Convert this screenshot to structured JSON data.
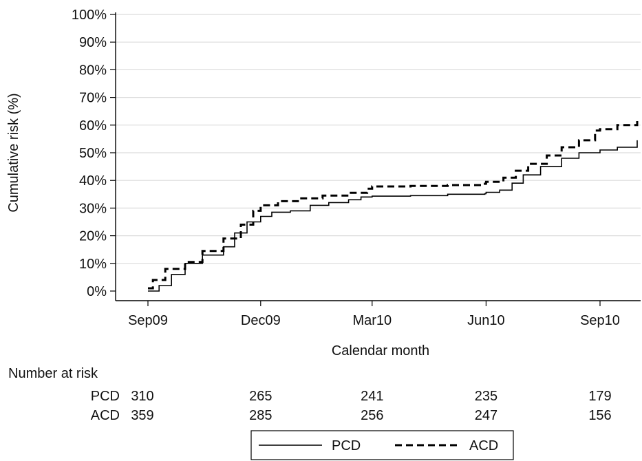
{
  "chart_data": {
    "type": "line",
    "xlabel": "Calendar month",
    "ylabel": "Cumulative risk (%)",
    "x_ticks": [
      "Sep09",
      "Dec09",
      "Mar10",
      "Jun10",
      "Sep10"
    ],
    "ylim": [
      0,
      100
    ],
    "y_ticks": [
      "0%",
      "10%",
      "20%",
      "30%",
      "40%",
      "50%",
      "60%",
      "70%",
      "80%",
      "90%",
      "100%"
    ],
    "grid": true,
    "legend_position": "bottom",
    "series": [
      {
        "name": "PCD",
        "style": "solid",
        "color": "#000000",
        "points": [
          [
            "Sep09",
            0
          ],
          [
            "2009-09-10",
            2
          ],
          [
            "2009-09-20",
            6
          ],
          [
            "2009-10-01",
            10
          ],
          [
            "2009-10-15",
            13
          ],
          [
            "2009-11-01",
            16
          ],
          [
            "2009-11-10",
            21
          ],
          [
            "2009-11-20",
            25
          ],
          [
            "Dec09",
            27
          ],
          [
            "2009-12-10",
            28.5
          ],
          [
            "2009-12-25",
            29
          ],
          [
            "2010-01-10",
            31
          ],
          [
            "2010-01-25",
            32
          ],
          [
            "2010-02-10",
            33
          ],
          [
            "2010-02-20",
            34
          ],
          [
            "Mar10",
            34.3
          ],
          [
            "2010-04-01",
            34.5
          ],
          [
            "2010-05-01",
            35
          ],
          [
            "2010-05-31",
            35.2
          ],
          [
            "Jun10",
            35.7
          ],
          [
            "2010-06-12",
            36.5
          ],
          [
            "2010-06-22",
            39
          ],
          [
            "2010-07-01",
            42
          ],
          [
            "2010-07-15",
            45
          ],
          [
            "2010-08-01",
            48
          ],
          [
            "2010-08-15",
            50
          ],
          [
            "Sep10",
            51
          ],
          [
            "2010-09-15",
            52
          ],
          [
            "2010-10-01",
            54.5
          ]
        ]
      },
      {
        "name": "ACD",
        "style": "dashed",
        "color": "#000000",
        "points": [
          [
            "Sep09",
            1
          ],
          [
            "2009-09-05",
            4
          ],
          [
            "2009-09-15",
            8
          ],
          [
            "2009-10-01",
            10.5
          ],
          [
            "2009-10-15",
            14.5
          ],
          [
            "2009-11-01",
            19
          ],
          [
            "2009-11-15",
            24
          ],
          [
            "2009-11-25",
            29
          ],
          [
            "Dec09",
            31
          ],
          [
            "2009-12-15",
            32.5
          ],
          [
            "2010-01-01",
            33.5
          ],
          [
            "2010-01-20",
            34.5
          ],
          [
            "2010-02-10",
            35.5
          ],
          [
            "2010-02-25",
            37
          ],
          [
            "Mar10",
            37.8
          ],
          [
            "2010-04-01",
            38
          ],
          [
            "2010-05-01",
            38.3
          ],
          [
            "2010-05-31",
            38.8
          ],
          [
            "Jun10",
            39.5
          ],
          [
            "2010-06-15",
            41
          ],
          [
            "2010-06-25",
            43.5
          ],
          [
            "2010-07-05",
            46
          ],
          [
            "2010-07-20",
            49
          ],
          [
            "2010-08-01",
            52
          ],
          [
            "2010-08-15",
            54.5
          ],
          [
            "2010-08-28",
            58
          ],
          [
            "Sep10",
            58.5
          ],
          [
            "2010-09-15",
            60
          ],
          [
            "2010-10-01",
            62
          ]
        ]
      }
    ]
  },
  "risk_table": {
    "title": "Number at risk",
    "rows": [
      {
        "label": "PCD",
        "values": [
          "310",
          "265",
          "241",
          "235",
          "179"
        ]
      },
      {
        "label": "ACD",
        "values": [
          "359",
          "285",
          "256",
          "247",
          "156"
        ]
      }
    ]
  }
}
